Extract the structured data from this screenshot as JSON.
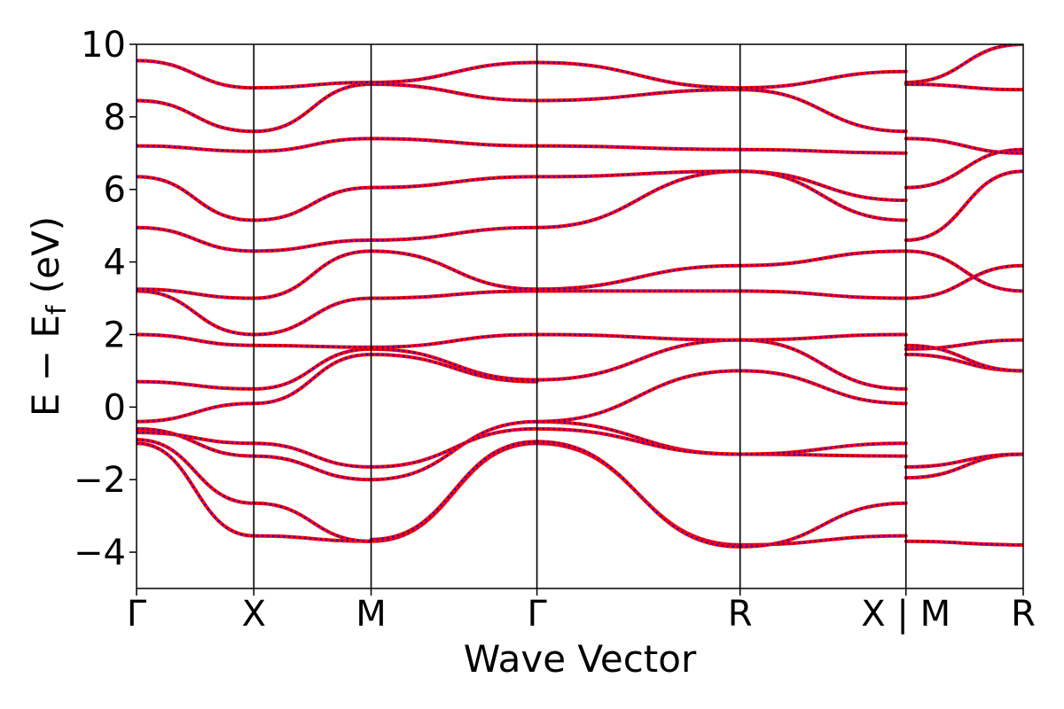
{
  "chart_data": {
    "type": "line",
    "xlabel": "Wave Vector",
    "ylabel": "E − E_f (eV)",
    "ylabel_main": "E − E",
    "ylabel_sub": "f",
    "ylabel_tail": " (eV)",
    "ylim": [
      -5,
      10
    ],
    "yticks": [
      -4,
      -2,
      0,
      2,
      4,
      6,
      8,
      10
    ],
    "ytick_labels": [
      "−4",
      "−2",
      "0",
      "2",
      "4",
      "6",
      "8",
      "10"
    ],
    "k_points": [
      {
        "label": "Γ",
        "x": 0.0
      },
      {
        "label": "X",
        "x": 0.5
      },
      {
        "label": "M",
        "x": 1.0
      },
      {
        "label": "Γ",
        "x": 1.707
      },
      {
        "label": "R",
        "x": 2.573
      },
      {
        "label": "X | M",
        "x": 3.28
      },
      {
        "label": "R",
        "x": 3.78
      }
    ],
    "xlim": [
      0,
      3.78
    ],
    "grid": false,
    "series_style": [
      {
        "color": "#ff0000",
        "dash": "solid"
      },
      {
        "color": "#0000ff",
        "dash": "dotted"
      }
    ],
    "bands": [
      {
        "x": [
          0,
          0.5,
          1.0
        ],
        "y": [
          -1.0,
          -3.55,
          -3.7
        ]
      },
      {
        "x": [
          1.0,
          1.707
        ],
        "y": [
          -3.7,
          -1.0
        ]
      },
      {
        "x": [
          1.707,
          2.573
        ],
        "y": [
          -1.0,
          -3.8
        ]
      },
      {
        "x": [
          2.573,
          3.28
        ],
        "y": [
          -3.8,
          -3.55
        ]
      },
      {
        "x": [
          3.28,
          3.78
        ],
        "y": [
          -3.7,
          -3.8
        ]
      },
      {
        "x": [
          0,
          0.5,
          1.0
        ],
        "y": [
          -0.9,
          -2.65,
          -3.7
        ]
      },
      {
        "x": [
          1.0,
          1.707
        ],
        "y": [
          -3.65,
          -0.95
        ]
      },
      {
        "x": [
          1.707,
          2.573
        ],
        "y": [
          -0.95,
          -3.85
        ]
      },
      {
        "x": [
          2.573,
          3.28
        ],
        "y": [
          -3.85,
          -2.65
        ]
      },
      {
        "x": [
          0,
          0.5,
          1.0
        ],
        "y": [
          -0.6,
          -1.35,
          -2.0
        ]
      },
      {
        "x": [
          1.0,
          1.707
        ],
        "y": [
          -2.0,
          -0.4
        ]
      },
      {
        "x": [
          1.707,
          2.573
        ],
        "y": [
          -0.4,
          -1.3
        ]
      },
      {
        "x": [
          2.573,
          3.28
        ],
        "y": [
          -1.3,
          -1.35
        ]
      },
      {
        "x": [
          3.28,
          3.78
        ],
        "y": [
          -1.95,
          -1.3
        ]
      },
      {
        "x": [
          0,
          0.5,
          1.0
        ],
        "y": [
          -0.7,
          -1.0,
          -1.65
        ]
      },
      {
        "x": [
          1.0,
          1.707
        ],
        "y": [
          -1.65,
          -0.6
        ]
      },
      {
        "x": [
          1.707,
          2.573
        ],
        "y": [
          -0.6,
          -1.3
        ]
      },
      {
        "x": [
          2.573,
          3.28
        ],
        "y": [
          -1.3,
          -1.0
        ]
      },
      {
        "x": [
          3.28,
          3.78
        ],
        "y": [
          -1.65,
          -1.3
        ]
      },
      {
        "x": [
          0,
          0.5,
          1.0
        ],
        "y": [
          -0.4,
          0.1,
          1.45
        ]
      },
      {
        "x": [
          1.0,
          1.707
        ],
        "y": [
          1.45,
          0.7
        ]
      },
      {
        "x": [
          1.707,
          2.573
        ],
        "y": [
          -0.4,
          1.0
        ]
      },
      {
        "x": [
          2.573,
          3.28
        ],
        "y": [
          1.0,
          0.1
        ]
      },
      {
        "x": [
          3.28,
          3.78
        ],
        "y": [
          1.45,
          1.0
        ]
      },
      {
        "x": [
          0,
          0.5,
          1.0
        ],
        "y": [
          0.7,
          0.5,
          1.6
        ]
      },
      {
        "x": [
          1.0,
          1.707
        ],
        "y": [
          1.6,
          0.75
        ]
      },
      {
        "x": [
          1.707,
          2.573
        ],
        "y": [
          0.75,
          1.85
        ]
      },
      {
        "x": [
          2.573,
          3.28
        ],
        "y": [
          1.85,
          0.5
        ]
      },
      {
        "x": [
          3.28,
          3.78
        ],
        "y": [
          1.6,
          1.85
        ]
      },
      {
        "x": [
          0,
          0.5,
          1.0
        ],
        "y": [
          2.0,
          1.7,
          1.65
        ]
      },
      {
        "x": [
          1.0,
          1.707
        ],
        "y": [
          1.65,
          2.0
        ]
      },
      {
        "x": [
          1.707,
          2.573
        ],
        "y": [
          2.0,
          1.85
        ]
      },
      {
        "x": [
          2.573,
          3.28
        ],
        "y": [
          1.85,
          2.0
        ]
      },
      {
        "x": [
          3.28,
          3.78
        ],
        "y": [
          1.7,
          1.0
        ]
      },
      {
        "x": [
          0,
          0.5,
          1.0
        ],
        "y": [
          3.2,
          2.0,
          3.0
        ]
      },
      {
        "x": [
          1.0,
          1.707
        ],
        "y": [
          3.0,
          3.2
        ]
      },
      {
        "x": [
          1.707,
          2.573
        ],
        "y": [
          3.2,
          3.2
        ]
      },
      {
        "x": [
          2.573,
          3.28
        ],
        "y": [
          3.2,
          3.0
        ]
      },
      {
        "x": [
          3.28,
          3.78
        ],
        "y": [
          3.0,
          3.9
        ]
      },
      {
        "x": [
          0,
          0.5,
          1.0
        ],
        "y": [
          3.25,
          3.0,
          4.3
        ]
      },
      {
        "x": [
          1.0,
          1.707
        ],
        "y": [
          4.3,
          3.25
        ]
      },
      {
        "x": [
          1.707,
          2.573
        ],
        "y": [
          3.25,
          3.9
        ]
      },
      {
        "x": [
          2.573,
          3.28
        ],
        "y": [
          3.9,
          4.3
        ]
      },
      {
        "x": [
          3.28,
          3.78
        ],
        "y": [
          4.3,
          3.2
        ]
      },
      {
        "x": [
          0,
          0.5,
          1.0
        ],
        "y": [
          4.95,
          4.3,
          4.6
        ]
      },
      {
        "x": [
          1.0,
          1.707
        ],
        "y": [
          4.6,
          4.95
        ]
      },
      {
        "x": [
          1.707,
          2.573
        ],
        "y": [
          4.95,
          6.5
        ]
      },
      {
        "x": [
          2.573,
          3.28
        ],
        "y": [
          6.5,
          5.7
        ]
      },
      {
        "x": [
          3.28,
          3.78
        ],
        "y": [
          4.6,
          6.5
        ]
      },
      {
        "x": [
          0,
          0.5,
          1.0
        ],
        "y": [
          6.35,
          5.15,
          6.05
        ]
      },
      {
        "x": [
          1.0,
          1.707
        ],
        "y": [
          6.05,
          6.35
        ]
      },
      {
        "x": [
          1.707,
          2.573
        ],
        "y": [
          6.35,
          6.5
        ]
      },
      {
        "x": [
          2.573,
          3.28
        ],
        "y": [
          6.5,
          5.15
        ]
      },
      {
        "x": [
          3.28,
          3.78
        ],
        "y": [
          6.05,
          7.1
        ]
      },
      {
        "x": [
          0,
          0.5,
          1.0
        ],
        "y": [
          7.2,
          7.05,
          7.4
        ]
      },
      {
        "x": [
          1.0,
          1.707
        ],
        "y": [
          7.4,
          7.2
        ]
      },
      {
        "x": [
          1.707,
          2.573
        ],
        "y": [
          7.2,
          7.1
        ]
      },
      {
        "x": [
          2.573,
          3.28
        ],
        "y": [
          7.1,
          7.0
        ]
      },
      {
        "x": [
          3.28,
          3.78
        ],
        "y": [
          7.4,
          7.0
        ]
      },
      {
        "x": [
          0,
          0.5,
          1.0
        ],
        "y": [
          8.45,
          7.6,
          8.9
        ]
      },
      {
        "x": [
          1.0,
          1.707
        ],
        "y": [
          8.9,
          8.45
        ]
      },
      {
        "x": [
          1.707,
          2.573
        ],
        "y": [
          8.45,
          8.75
        ]
      },
      {
        "x": [
          2.573,
          3.28
        ],
        "y": [
          8.75,
          7.6
        ]
      },
      {
        "x": [
          3.28,
          3.78
        ],
        "y": [
          8.9,
          8.75
        ]
      },
      {
        "x": [
          0,
          0.5,
          1.0
        ],
        "y": [
          9.55,
          8.8,
          8.95
        ]
      },
      {
        "x": [
          1.0,
          1.707
        ],
        "y": [
          8.95,
          9.5
        ]
      },
      {
        "x": [
          1.707,
          2.573
        ],
        "y": [
          9.5,
          8.8
        ]
      },
      {
        "x": [
          2.573,
          3.28
        ],
        "y": [
          8.8,
          9.25
        ]
      },
      {
        "x": [
          3.28,
          3.78
        ],
        "y": [
          8.95,
          10.0
        ]
      }
    ]
  }
}
